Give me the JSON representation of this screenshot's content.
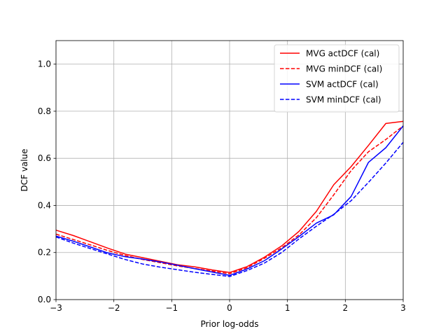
{
  "chart_data": {
    "type": "line",
    "title": "",
    "xlabel": "Prior log-odds",
    "ylabel": "DCF value",
    "xlim": [
      -3,
      3
    ],
    "ylim": [
      0,
      1.1
    ],
    "xticks": [
      -3,
      -2,
      -1,
      0,
      1,
      2,
      3
    ],
    "xtick_labels": [
      "−3",
      "−2",
      "−1",
      "0",
      "1",
      "2",
      "3"
    ],
    "yticks": [
      0.0,
      0.2,
      0.4,
      0.6,
      0.8,
      1.0
    ],
    "ytick_labels": [
      "0.0",
      "0.2",
      "0.4",
      "0.6",
      "0.8",
      "1.0"
    ],
    "grid": true,
    "legend_position": "top-right",
    "x": [
      -3.0,
      -2.7,
      -2.4,
      -2.1,
      -1.8,
      -1.5,
      -1.2,
      -0.9,
      -0.6,
      -0.3,
      0.0,
      0.3,
      0.6,
      0.9,
      1.2,
      1.5,
      1.8,
      2.1,
      2.4,
      2.7,
      3.0
    ],
    "series": [
      {
        "name": "MVG actDCF (cal)",
        "color": "#ff0000",
        "dash": "solid",
        "values": [
          0.295,
          0.272,
          0.245,
          0.218,
          0.193,
          0.178,
          0.163,
          0.148,
          0.139,
          0.126,
          0.115,
          0.14,
          0.18,
          0.228,
          0.29,
          0.375,
          0.488,
          0.565,
          0.655,
          0.748,
          0.757
        ]
      },
      {
        "name": "MVG minDCF (cal)",
        "color": "#ff0000",
        "dash": "dashed",
        "values": [
          0.278,
          0.255,
          0.232,
          0.208,
          0.187,
          0.17,
          0.157,
          0.143,
          0.132,
          0.121,
          0.11,
          0.135,
          0.175,
          0.22,
          0.275,
          0.348,
          0.445,
          0.548,
          0.628,
          0.68,
          0.738
        ]
      },
      {
        "name": "SVM actDCF (cal)",
        "color": "#0000ff",
        "dash": "solid",
        "values": [
          0.27,
          0.248,
          0.223,
          0.198,
          0.182,
          0.172,
          0.16,
          0.146,
          0.131,
          0.117,
          0.103,
          0.13,
          0.165,
          0.215,
          0.268,
          0.325,
          0.36,
          0.438,
          0.583,
          0.645,
          0.738
        ]
      },
      {
        "name": "SVM minDCF (cal)",
        "color": "#0000ff",
        "dash": "dashed",
        "values": [
          0.266,
          0.24,
          0.216,
          0.193,
          0.17,
          0.151,
          0.138,
          0.127,
          0.116,
          0.107,
          0.098,
          0.123,
          0.155,
          0.2,
          0.258,
          0.312,
          0.362,
          0.42,
          0.498,
          0.58,
          0.668
        ]
      }
    ]
  }
}
